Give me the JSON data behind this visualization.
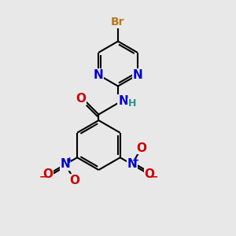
{
  "background_color": "#e8e8e8",
  "atom_colors": {
    "C": "#000000",
    "N": "#0000cc",
    "O": "#cc0000",
    "Br": "#b87820",
    "H": "#2a9090"
  },
  "bond_color": "#000000",
  "bond_width": 1.5,
  "font_size_atoms": 11,
  "font_size_small": 9,
  "font_size_charge": 8
}
